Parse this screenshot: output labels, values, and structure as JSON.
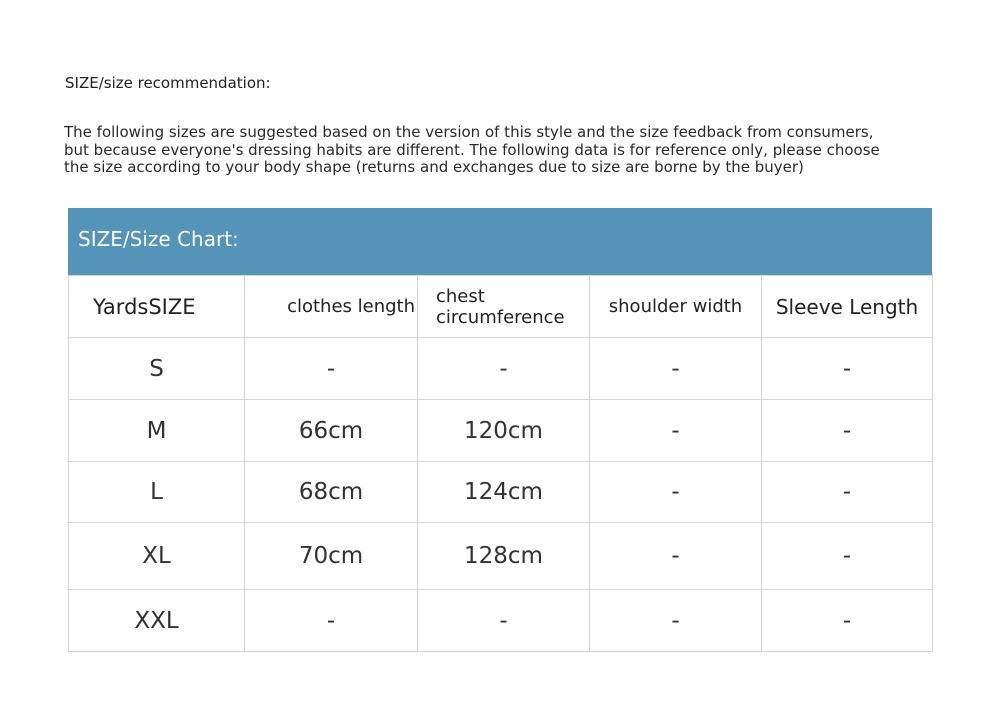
{
  "recommendation_title": "SIZE/size recommendation:",
  "intro_lines": [
    "The following sizes are suggested based on the version of this style and the size feedback from consumers,",
    "but because everyone's dressing habits are different. The following data is for reference only, please choose",
    "the size according to your body shape (returns and exchanges due to size are borne by the buyer)"
  ],
  "chart": {
    "title": "SIZE/Size Chart:",
    "header_color": "#5494b8",
    "columns": [
      "YardsSIZE",
      "clothes length",
      "chest circumference",
      "shoulder width",
      "Sleeve Length"
    ],
    "rows": [
      [
        "S",
        "-",
        "-",
        "-",
        "-"
      ],
      [
        "M",
        "66cm",
        "120cm",
        "-",
        "-"
      ],
      [
        "L",
        "68cm",
        "124cm",
        "-",
        "-"
      ],
      [
        "XL",
        "70cm",
        "128cm",
        "-",
        "-"
      ],
      [
        "XXL",
        "-",
        "-",
        "-",
        "-"
      ]
    ]
  }
}
